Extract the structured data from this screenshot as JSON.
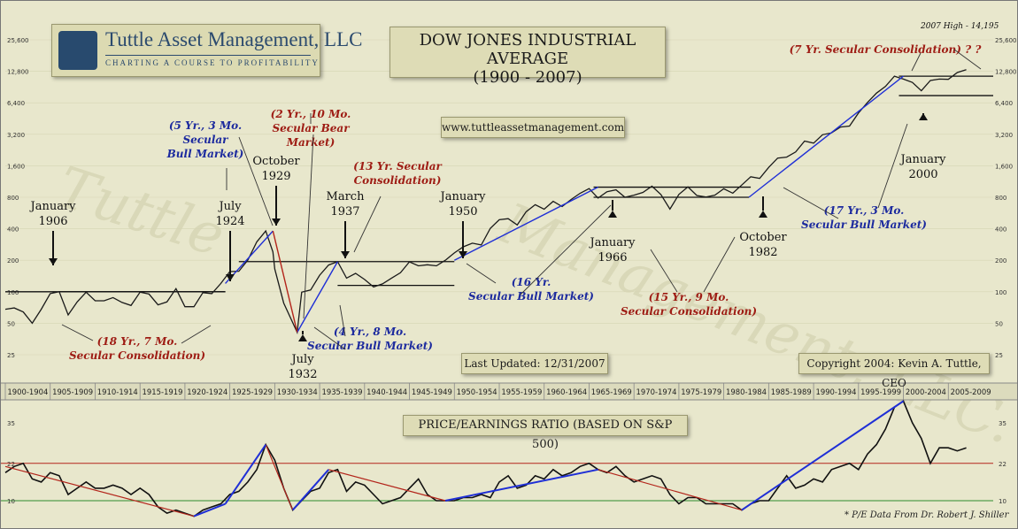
{
  "title_line1": "DOW JONES INDUSTRIAL AVERAGE",
  "title_line2": "(1900 - 2007)",
  "logo": {
    "name": "Tuttle Asset Management, LLC",
    "tagline": "CHARTING A COURSE TO PROFITABILITY"
  },
  "website": "www.tuttleassetmanagement.com",
  "last_updated": "Last Updated: 12/31/2007",
  "copyright": "Copyright 2004: Kevin A. Tuttle, CEO",
  "pe_title": "PRICE/EARNINGS RATIO (BASED ON S&P 500)",
  "pe_footnote": "* P/E Data From Dr. Robert J. Shiller",
  "colors": {
    "bg": "#e8e7cc",
    "price_line": "#1a1a1a",
    "trend_blue": "#1f2fd6",
    "trend_red": "#b3251b",
    "bull_text": "#1c2a9e",
    "bear_text": "#9e1c14",
    "band_red": "#b3251b",
    "band_green": "#2e8b2e"
  },
  "chart_data": [
    {
      "type": "line",
      "title": "DOW JONES INDUSTRIAL AVERAGE (1900 - 2007)",
      "y_scale": "log",
      "y_ticks": [
        25,
        50,
        100,
        200,
        400,
        800,
        1600,
        3200,
        6400,
        12800,
        25600
      ],
      "y_tick_labels": [
        "25",
        "50",
        "100",
        "200",
        "400",
        "800",
        "1,600",
        "3,200",
        "6,400",
        "12,800",
        "25,600"
      ],
      "x_range": [
        1900,
        2010
      ],
      "x_period_labels": [
        "1900-1904",
        "1905-1909",
        "1910-1914",
        "1915-1919",
        "1920-1924",
        "1925-1929",
        "1930-1934",
        "1935-1939",
        "1940-1944",
        "1945-1949",
        "1950-1954",
        "1955-1959",
        "1960-1964",
        "1965-1969",
        "1970-1974",
        "1975-1979",
        "1980-1984",
        "1985-1989",
        "1990-1994",
        "1995-1999",
        "2000-2004",
        "2005-2009"
      ],
      "series": [
        {
          "x": [
            1900,
            1901,
            1902,
            1903,
            1904,
            1905,
            1906,
            1907,
            1908,
            1909,
            1910,
            1911,
            1912,
            1913,
            1914,
            1915,
            1916,
            1917,
            1918,
            1919,
            1920,
            1921,
            1922,
            1923,
            1924,
            1925,
            1926,
            1927,
            1928,
            1929,
            1929.8,
            1930,
            1931,
            1932.5,
            1933,
            1934,
            1935,
            1936,
            1937,
            1938,
            1939,
            1940,
            1941,
            1942,
            1943,
            1944,
            1945,
            1946,
            1947,
            1948,
            1949,
            1950,
            1951,
            1952,
            1953,
            1954,
            1955,
            1956,
            1957,
            1958,
            1959,
            1960,
            1961,
            1962,
            1963,
            1964,
            1965,
            1966,
            1967,
            1968,
            1969,
            1970,
            1971,
            1972,
            1973,
            1974,
            1975,
            1976,
            1977,
            1978,
            1979,
            1980,
            1981,
            1982,
            1983,
            1984,
            1985,
            1986,
            1987,
            1988,
            1989,
            1990,
            1991,
            1992,
            1993,
            1994,
            1995,
            1996,
            1997,
            1998,
            1999,
            2000,
            2001,
            2002,
            2003,
            2004,
            2005,
            2006,
            2007
          ],
          "y": [
            68,
            70,
            64,
            50,
            68,
            96,
            100,
            60,
            80,
            99,
            82,
            82,
            88,
            79,
            74,
            99,
            95,
            75,
            80,
            107,
            72,
            72,
            98,
            96,
            120,
            156,
            157,
            200,
            300,
            381,
            240,
            165,
            78,
            41,
            99,
            104,
            144,
            180,
            194,
            135,
            150,
            131,
            111,
            119,
            135,
            152,
            193,
            177,
            181,
            177,
            200,
            235,
            269,
            291,
            280,
            404,
            488,
            499,
            435,
            583,
            679,
            615,
            731,
            652,
            762,
            874,
            969,
            786,
            905,
            943,
            800,
            839,
            890,
            1020,
            850,
            616,
            852,
            1004,
            831,
            805,
            838,
            964,
            875,
            1046,
            1258,
            1211,
            1546,
            1895,
            1938,
            2168,
            2753,
            2633,
            3168,
            3301,
            3754,
            3834,
            5117,
            6448,
            7908,
            9181,
            11497,
            10787,
            10021,
            8342,
            10454,
            10783,
            10718,
            12463,
            13264
          ]
        },
        {
          "name": "trend_lines",
          "values": []
        }
      ],
      "annotations": {
        "date_labels": [
          {
            "l1": "January",
            "l2": "1906"
          },
          {
            "l1": "July",
            "l2": "1924"
          },
          {
            "l1": "October",
            "l2": "1929"
          },
          {
            "l1": "July",
            "l2": "1932"
          },
          {
            "l1": "March",
            "l2": "1937"
          },
          {
            "l1": "January",
            "l2": "1950"
          },
          {
            "l1": "January",
            "l2": "1966"
          },
          {
            "l1": "October",
            "l2": "1982"
          },
          {
            "l1": "January",
            "l2": "2000"
          }
        ],
        "phase_labels": [
          {
            "l1": "(18 Yr., 7 Mo.",
            "l2": "Secular Consolidation)",
            "kind": "bear"
          },
          {
            "l1": "(5 Yr., 3 Mo.",
            "l2": "Secular",
            "l3": "Bull Market)",
            "kind": "bull"
          },
          {
            "l1": "(2 Yr., 10 Mo.",
            "l2": "Secular Bear",
            "l3": "Market)",
            "kind": "bear"
          },
          {
            "l1": "(4 Yr., 8 Mo.",
            "l2": "Secular Bull Market)",
            "kind": "bull"
          },
          {
            "l1": "(13 Yr. Secular",
            "l2": "Consolidation)",
            "kind": "bear"
          },
          {
            "l1": "(16 Yr.",
            "l2": "Secular Bull Market)",
            "kind": "bull"
          },
          {
            "l1": "(15 Yr., 9 Mo.",
            "l2": "Secular Consolidation)",
            "kind": "bear"
          },
          {
            "l1": "(17 Yr., 3 Mo.",
            "l2": "Secular Bull Market)",
            "kind": "bull"
          },
          {
            "l1": "(7 Yr. Secular Consolidation) ? ?",
            "kind": "bear"
          }
        ],
        "high_label": "2007 High - 14,195"
      }
    },
    {
      "type": "line",
      "title": "PRICE/EARNINGS RATIO (BASED ON S&P 500)",
      "y_ticks": [
        10,
        22,
        35
      ],
      "x_range": [
        1900,
        2010
      ],
      "series": [
        {
          "x": [
            1900,
            1901,
            1902,
            1903,
            1904,
            1905,
            1906,
            1907,
            1908,
            1909,
            1910,
            1911,
            1912,
            1913,
            1914,
            1915,
            1916,
            1917,
            1918,
            1919,
            1920,
            1921,
            1922,
            1923,
            1924,
            1925,
            1926,
            1927,
            1928,
            1929,
            1930,
            1931,
            1932,
            1933,
            1934,
            1935,
            1936,
            1937,
            1938,
            1939,
            1940,
            1941,
            1942,
            1943,
            1944,
            1945,
            1946,
            1947,
            1948,
            1949,
            1950,
            1951,
            1952,
            1953,
            1954,
            1955,
            1956,
            1957,
            1958,
            1959,
            1960,
            1961,
            1962,
            1963,
            1964,
            1965,
            1966,
            1967,
            1968,
            1969,
            1970,
            1971,
            1972,
            1973,
            1974,
            1975,
            1976,
            1977,
            1978,
            1979,
            1980,
            1981,
            1982,
            1983,
            1984,
            1985,
            1986,
            1987,
            1988,
            1989,
            1990,
            1991,
            1992,
            1993,
            1994,
            1995,
            1996,
            1997,
            1998,
            1999,
            2000,
            2001,
            2002,
            2003,
            2004,
            2005,
            2006,
            2007
          ],
          "y": [
            19,
            21,
            22,
            17,
            16,
            19,
            18,
            12,
            14,
            16,
            14,
            14,
            15,
            14,
            12,
            14,
            12,
            8,
            6,
            7,
            6,
            5,
            7,
            8,
            9,
            12,
            13,
            16,
            20,
            28,
            23,
            14,
            7,
            10,
            13,
            14,
            19,
            20,
            13,
            16,
            15,
            12,
            9,
            10,
            11,
            14,
            17,
            12,
            10,
            10,
            10,
            11,
            11,
            12,
            11,
            16,
            18,
            14,
            15,
            18,
            17,
            20,
            18,
            19,
            21,
            22,
            20,
            19,
            21,
            18,
            16,
            17,
            18,
            17,
            12,
            9,
            11,
            11,
            9,
            9,
            9,
            9,
            7,
            9,
            10,
            10,
            14,
            18,
            14,
            15,
            17,
            16,
            20,
            21,
            22,
            20,
            25,
            28,
            33,
            40,
            42,
            35,
            30,
            22,
            27,
            27,
            26,
            27
          ]
        }
      ]
    }
  ]
}
